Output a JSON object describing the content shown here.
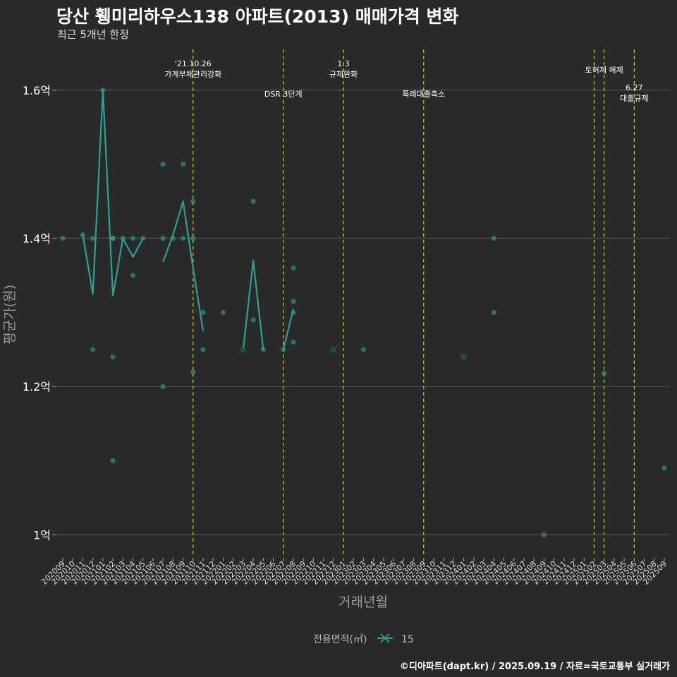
{
  "header": {
    "title": "당산 휑미리하우스138 아파트(2013) 매매가격 변화",
    "subtitle": "최근 5개년 한정"
  },
  "caption": "©디아파트(dapt.kr) / 2025.09.19 / 자료=국토교통부 실거래가",
  "colors": {
    "background": "#292929",
    "grid": "#5a5a5a",
    "series": "#2aa198",
    "event_line": "#e0e000",
    "text": "#ffffff",
    "axis_title": "#9a9a9a"
  },
  "chart_data": {
    "type": "line",
    "xlabel": "거래년월",
    "ylabel": "평균가(원)",
    "ylim": [
      0.97,
      1.655
    ],
    "yticks": [
      {
        "value": 1.0,
        "label": "1억"
      },
      {
        "value": 1.2,
        "label": "1.2억"
      },
      {
        "value": 1.4,
        "label": "1.4억"
      },
      {
        "value": 1.6,
        "label": "1.6억"
      }
    ],
    "categories": [
      "202009",
      "202010",
      "202011",
      "202012",
      "202101",
      "202102",
      "202103",
      "202104",
      "202105",
      "202106",
      "202107",
      "202108",
      "202109",
      "202110",
      "202111",
      "202112",
      "202201",
      "202202",
      "202203",
      "202204",
      "202205",
      "202206",
      "202207",
      "202208",
      "202209",
      "202210",
      "202211",
      "202212",
      "202301",
      "202302",
      "202303",
      "202304",
      "202305",
      "202306",
      "202307",
      "202308",
      "202309",
      "202310",
      "202311",
      "202312",
      "202401",
      "202402",
      "202403",
      "202404",
      "202405",
      "202406",
      "202407",
      "202408",
      "202409",
      "202410",
      "202411",
      "202412",
      "202501",
      "202502",
      "202503",
      "202504",
      "202505",
      "202506",
      "202507",
      "202508",
      "202509"
    ],
    "legend": {
      "title": "전용면적(㎡)",
      "items": [
        {
          "label": "15",
          "marker": "x-line"
        }
      ]
    },
    "series": [
      {
        "name": "15",
        "line_segments": [
          [
            [
              "202011",
              1.405
            ],
            [
              "202012",
              1.325
            ],
            [
              "202101",
              1.6
            ],
            [
              "202102",
              1.323
            ],
            [
              "202103",
              1.4
            ],
            [
              "202104",
              1.375
            ],
            [
              "202105",
              1.4
            ]
          ],
          [
            [
              "202107",
              1.368
            ],
            [
              "202108",
              1.405
            ],
            [
              "202109",
              1.45
            ],
            [
              "202110",
              1.36
            ],
            [
              "202111",
              1.275
            ]
          ],
          [
            [
              "202203",
              1.25
            ],
            [
              "202204",
              1.37
            ],
            [
              "202205",
              1.25
            ]
          ],
          [
            [
              "202207",
              1.25
            ],
            [
              "202208",
              1.305
            ]
          ]
        ],
        "x_markers": [
          [
            "202203",
            1.25
          ],
          [
            "202212",
            1.25
          ],
          [
            "202401",
            1.24
          ]
        ],
        "points": [
          [
            "202009",
            1.4
          ],
          [
            "202011",
            1.405
          ],
          [
            "202012",
            1.4
          ],
          [
            "202012",
            1.25
          ],
          [
            "202101",
            1.6
          ],
          [
            "202102",
            1.4
          ],
          [
            "202102",
            1.4
          ],
          [
            "202102",
            1.24
          ],
          [
            "202102",
            1.1
          ],
          [
            "202103",
            1.4
          ],
          [
            "202104",
            1.4
          ],
          [
            "202104",
            1.35
          ],
          [
            "202105",
            1.4
          ],
          [
            "202107",
            1.5
          ],
          [
            "202107",
            1.4
          ],
          [
            "202107",
            1.2
          ],
          [
            "202108",
            1.4
          ],
          [
            "202109",
            1.5
          ],
          [
            "202109",
            1.4
          ],
          [
            "202110",
            1.45
          ],
          [
            "202110",
            1.4
          ],
          [
            "202110",
            1.22
          ],
          [
            "202111",
            1.3
          ],
          [
            "202111",
            1.25
          ],
          [
            "202201",
            1.3
          ],
          [
            "202203",
            1.25
          ],
          [
            "202204",
            1.45
          ],
          [
            "202204",
            1.29
          ],
          [
            "202205",
            1.25
          ],
          [
            "202207",
            1.25
          ],
          [
            "202208",
            1.36
          ],
          [
            "202208",
            1.315
          ],
          [
            "202208",
            1.3
          ],
          [
            "202208",
            1.26
          ],
          [
            "202212",
            1.25
          ],
          [
            "202303",
            1.25
          ],
          [
            "202401",
            1.24
          ],
          [
            "202404",
            1.4
          ],
          [
            "202404",
            1.3
          ],
          [
            "202409",
            1.0
          ],
          [
            "202503",
            1.218
          ],
          [
            "202509",
            1.09
          ]
        ]
      }
    ],
    "annotations": [
      {
        "x": "202110",
        "label_lines": [
          "'21.10.26",
          "가계부채관리강화"
        ],
        "position": "high"
      },
      {
        "x": "202207",
        "label_lines": [
          "DSR 3단계"
        ],
        "position": "low"
      },
      {
        "x": "202301",
        "label_lines": [
          "1.3",
          "규제완화"
        ],
        "position": "high"
      },
      {
        "x": "202309",
        "label_lines": [
          "특례대출축소"
        ],
        "position": "low"
      },
      {
        "x": "202502",
        "label_lines": [],
        "position": "none"
      },
      {
        "x": "202503",
        "label_lines": [
          "토허제 해제"
        ],
        "position": "mid"
      },
      {
        "x": "202506",
        "label_lines": [
          "6.27",
          "대출규제"
        ],
        "position": "lower"
      }
    ]
  }
}
